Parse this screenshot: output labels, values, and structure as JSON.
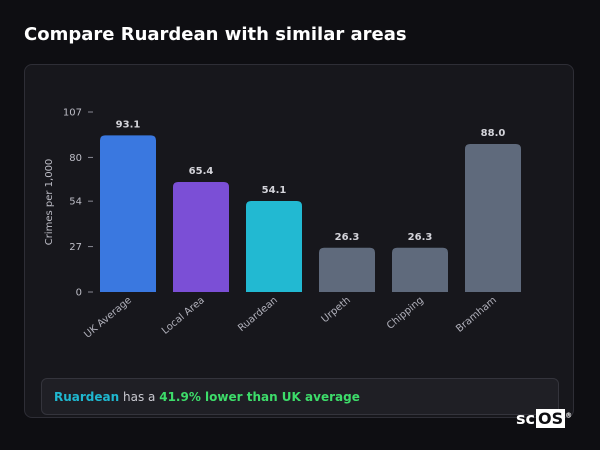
{
  "title": "Compare Ruardean with similar areas",
  "chart_data": {
    "type": "bar",
    "ylabel": "Crimes per 1,000",
    "ylim": [
      0,
      107
    ],
    "yticks": [
      0,
      27,
      54,
      80,
      107
    ],
    "grid": false,
    "categories": [
      "UK Average",
      "Local Area",
      "Ruardean",
      "Urpeth",
      "Chipping",
      "Bramham"
    ],
    "values": [
      93.1,
      65.4,
      54.1,
      26.3,
      26.3,
      88.0
    ],
    "value_labels": [
      "93.1",
      "65.4",
      "54.1",
      "26.3",
      "26.3",
      "88.0"
    ],
    "colors": [
      "#3a78e0",
      "#7b4fd6",
      "#22b9d2",
      "#5f6a7c",
      "#5f6a7c",
      "#5f6a7c"
    ]
  },
  "summary": {
    "area": "Ruardean",
    "mid": "has a",
    "comparison": "41.9% lower than UK average"
  },
  "logo": {
    "prefix": "sc",
    "boxed": "OS",
    "mark": "®"
  }
}
